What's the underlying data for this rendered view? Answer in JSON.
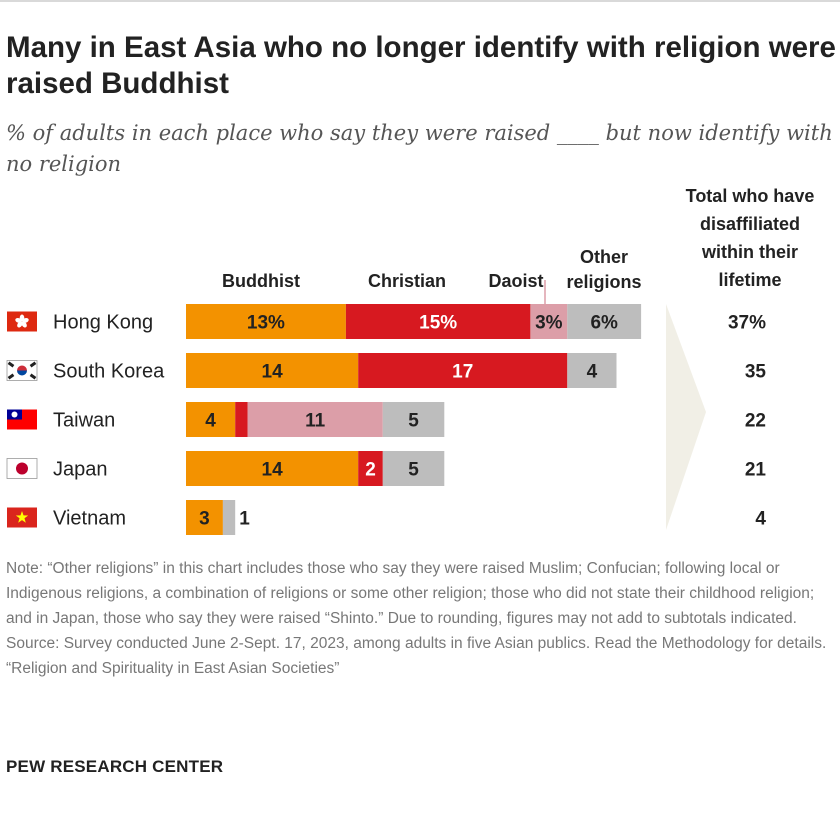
{
  "header": {
    "title": "Many in East Asia who no longer identify with religion were raised Buddhist",
    "subtitle": "% of adults in each place who say they were raised ____ but now identify with no religion"
  },
  "chart_data": {
    "type": "bar",
    "orientation": "horizontal",
    "stacked": true,
    "categories": [
      "Hong Kong",
      "South Korea",
      "Taiwan",
      "Japan",
      "Vietnam"
    ],
    "series": [
      {
        "name": "Buddhist",
        "color": "#f39200",
        "values": [
          13,
          14,
          4,
          14,
          3
        ],
        "labels": [
          "13%",
          "14",
          "4",
          "14",
          "3"
        ]
      },
      {
        "name": "Christian",
        "color": "#d71920",
        "values": [
          15,
          17,
          1,
          2,
          0
        ],
        "labels": [
          "15%",
          "17",
          "1",
          "2",
          ""
        ]
      },
      {
        "name": "Daoist",
        "color": "#dc9ea8",
        "values": [
          3,
          0,
          11,
          0,
          0
        ],
        "labels": [
          "3%",
          "",
          "11",
          "",
          ""
        ]
      },
      {
        "name": "Other religions",
        "color": "#bdbdbd",
        "values": [
          6,
          4,
          5,
          5,
          1
        ],
        "labels": [
          "6%",
          "4",
          "5",
          "5",
          "1"
        ]
      }
    ],
    "totals_header": "Total who have disaffiliated within their lifetime",
    "totals": [
      "37%",
      "35",
      "22",
      "21",
      "4"
    ],
    "flags": [
      "hong-kong-flag-icon",
      "south-korea-flag-icon",
      "taiwan-flag-icon",
      "japan-flag-icon",
      "vietnam-flag-icon"
    ]
  },
  "footer": {
    "note": "Note: “Other religions” in this chart includes those who say they were raised Muslim; Confucian; following local or Indigenous religions, a combination of religions or some other religion; those who did not state their childhood religion; and in Japan, those who say they were raised “Shinto.” Due to rounding, figures may not add to subtotals indicated.",
    "source": "Source: Survey conducted June 2-Sept. 17, 2023, among adults in five Asian publics. Read the Methodology for details.",
    "report": "“Religion and Spirituality in East Asian Societies”",
    "brand": "PEW RESEARCH CENTER"
  }
}
